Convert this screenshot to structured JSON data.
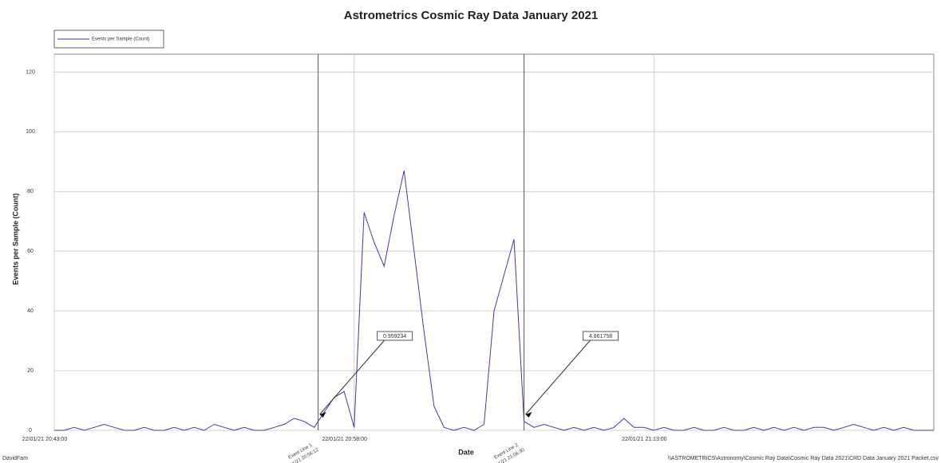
{
  "chart_data": {
    "type": "line",
    "title": "Astrometrics Cosmic Ray Data January 2021",
    "y_label": "Events per Sample (Count)",
    "x_label": "Date",
    "footer_left": "DavidFam",
    "footer_right": "\\\\ASTROMETRICS\\Astronomy\\Cosmic Ray Data\\Cosmic Ray Data 2021\\CRD Data January 2021 Packet.csv",
    "x": [
      "22/01/21 20:43:00",
      "22/01/21 20:43:30",
      "22/01/21 20:44:00",
      "22/01/21 20:44:30",
      "22/01/21 20:45:00",
      "22/01/21 20:45:30",
      "22/01/21 20:46:00",
      "22/01/21 20:46:30",
      "22/01/21 20:47:00",
      "22/01/21 20:47:30",
      "22/01/21 20:48:00",
      "22/01/21 20:48:30",
      "22/01/21 20:49:00",
      "22/01/21 20:49:30",
      "22/01/21 20:50:00",
      "22/01/21 20:50:30",
      "22/01/21 20:51:00",
      "22/01/21 20:51:30",
      "22/01/21 20:52:00",
      "22/01/21 20:52:30",
      "22/01/21 20:53:00",
      "22/01/21 20:53:30",
      "22/01/21 20:54:00",
      "22/01/21 20:54:30",
      "22/01/21 20:55:00",
      "22/01/21 20:55:30",
      "22/01/21 20:56:00",
      "22/01/21 20:56:30",
      "22/01/21 20:57:00",
      "22/01/21 20:57:30",
      "22/01/21 20:58:00",
      "22/01/21 20:58:30",
      "22/01/21 20:59:00",
      "22/01/21 20:59:30",
      "22/01/21 21:00:00",
      "22/01/21 21:00:30",
      "22/01/21 21:01:00",
      "22/01/21 21:01:30",
      "22/01/21 21:02:00",
      "22/01/21 21:02:30",
      "22/01/21 21:03:00",
      "22/01/21 21:03:30",
      "22/01/21 21:04:00",
      "22/01/21 21:04:30",
      "22/01/21 21:05:00",
      "22/01/21 21:05:30",
      "22/01/21 21:06:00",
      "22/01/21 21:06:30",
      "22/01/21 21:07:00",
      "22/01/21 21:07:30",
      "22/01/21 21:08:00",
      "22/01/21 21:08:30",
      "22/01/21 21:09:00",
      "22/01/21 21:09:30",
      "22/01/21 21:10:00",
      "22/01/21 21:10:30",
      "22/01/21 21:11:00",
      "22/01/21 21:11:30",
      "22/01/21 21:12:00",
      "22/01/21 21:12:30",
      "22/01/21 21:13:00",
      "22/01/21 21:13:30",
      "22/01/21 21:14:00",
      "22/01/21 21:14:30",
      "22/01/21 21:15:00",
      "22/01/21 21:15:30",
      "22/01/21 21:16:00",
      "22/01/21 21:16:30",
      "22/01/21 21:17:00",
      "22/01/21 21:17:30",
      "22/01/21 21:18:00",
      "22/01/21 21:18:30",
      "22/01/21 21:19:00",
      "22/01/21 21:19:30",
      "22/01/21 21:20:00",
      "22/01/21 21:20:30",
      "22/01/21 21:21:00",
      "22/01/21 21:21:30",
      "22/01/21 21:22:00",
      "22/01/21 21:22:30",
      "22/01/21 21:23:00",
      "22/01/21 21:23:30",
      "22/01/21 21:24:00",
      "22/01/21 21:24:30",
      "22/01/21 21:25:00",
      "22/01/21 21:25:30",
      "22/01/21 21:26:00",
      "22/01/21 21:26:30",
      "22/01/21 21:27:00"
    ],
    "series": [
      {
        "name": "Events per Sample (Count)",
        "color": "#3b3fa6",
        "values": [
          0,
          0,
          1,
          0,
          1,
          2,
          1,
          0,
          0,
          1,
          0,
          0,
          1,
          0,
          1,
          0,
          2,
          1,
          0,
          1,
          0,
          0,
          1,
          2,
          4,
          3,
          1,
          6,
          11,
          13,
          1,
          73,
          63,
          55,
          72,
          87,
          60,
          33,
          8,
          1,
          0,
          1,
          0,
          2,
          40,
          52,
          64,
          3,
          1,
          2,
          1,
          0,
          1,
          0,
          1,
          0,
          1,
          4,
          1,
          1,
          0,
          1,
          0,
          0,
          1,
          0,
          0,
          1,
          0,
          0,
          1,
          0,
          1,
          0,
          1,
          0,
          1,
          1,
          0,
          1,
          2,
          1,
          0,
          1,
          0,
          1,
          0,
          0,
          0
        ]
      }
    ],
    "xlim": [
      "22/01/21 20:43:00",
      "22/01/21 21:27:00"
    ],
    "xticks": [
      "22/01/21 20:43:00",
      "22/01/21 20:58:00",
      "22/01/21 21:13:00"
    ],
    "ylim": [
      0,
      126
    ],
    "yticks": [
      0,
      20,
      40,
      60,
      80,
      100,
      120
    ],
    "grid": true,
    "legend": "top-left",
    "event_lines": [
      {
        "label": "Event Line 1",
        "x": "22/01/21 20:56:12",
        "annotation": "0.959234"
      },
      {
        "label": "Event Line 2",
        "x": "22/01/21 21:06:30",
        "annotation": "4.861758"
      }
    ]
  }
}
